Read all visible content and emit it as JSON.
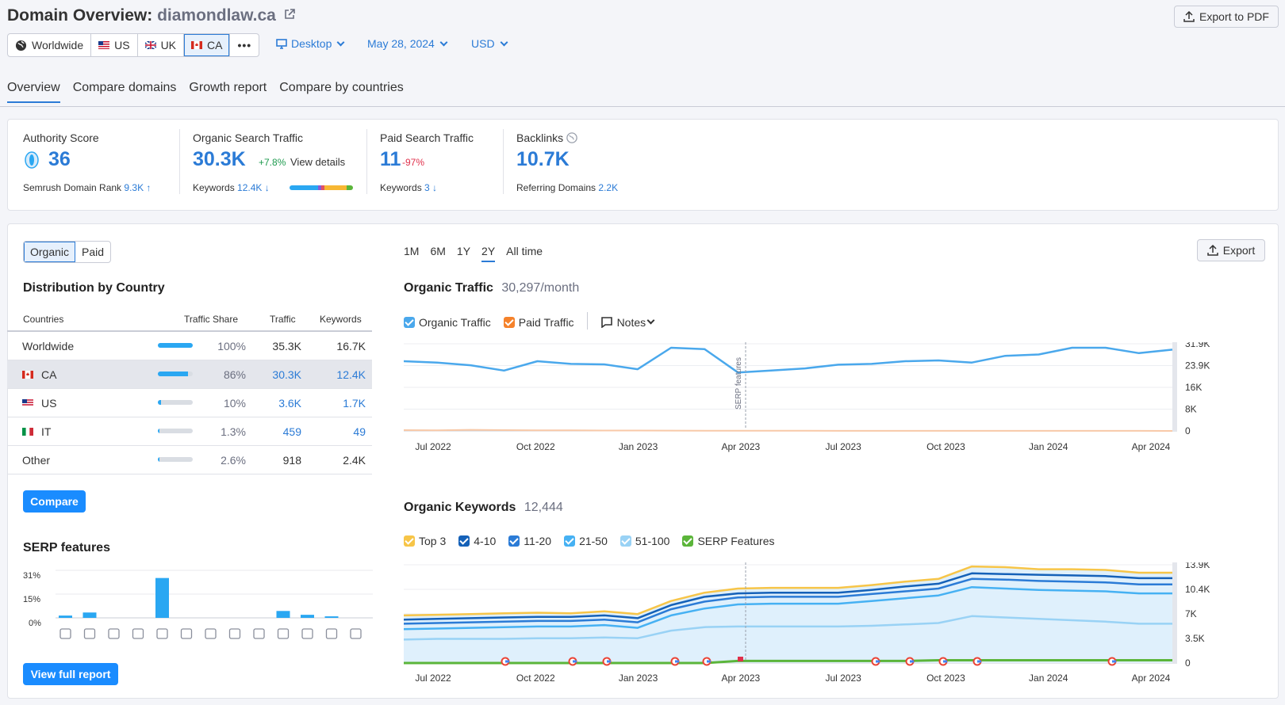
{
  "header": {
    "title": "Domain Overview:",
    "domain": "diamondlaw.ca",
    "export_pdf": "Export to PDF"
  },
  "regions": [
    {
      "label": "Worldwide"
    },
    {
      "label": "US"
    },
    {
      "label": "UK"
    },
    {
      "label": "CA"
    },
    {
      "label": "•••"
    }
  ],
  "filters": {
    "device": "Desktop",
    "date": "May 28, 2024",
    "currency": "USD"
  },
  "tabs": [
    "Overview",
    "Compare domains",
    "Growth report",
    "Compare by countries"
  ],
  "metrics": {
    "authority": {
      "label": "Authority Score",
      "value": "36",
      "sub_label": "Semrush Domain Rank",
      "sub_value": "9.3K ↑"
    },
    "organic": {
      "label": "Organic Search Traffic",
      "value": "30.3K",
      "change": "+7.8%",
      "link": "View details",
      "sub_label": "Keywords",
      "sub_value": "12.4K ↓"
    },
    "paid": {
      "label": "Paid Search Traffic",
      "value": "11",
      "change": "-97%",
      "sub_label": "Keywords",
      "sub_value": "3 ↓"
    },
    "backlinks": {
      "label": "Backlinks",
      "value": "10.7K",
      "sub_label": "Referring Domains",
      "sub_value": "2.2K"
    }
  },
  "left": {
    "seg": [
      "Organic",
      "Paid"
    ],
    "dist_title": "Distribution by Country",
    "columns": [
      "Countries",
      "Traffic Share",
      "Traffic",
      "Keywords"
    ],
    "rows": [
      {
        "country": "Worldwide",
        "share": "100%",
        "share_frac": 1.0,
        "traffic": "35.3K",
        "keywords": "16.7K"
      },
      {
        "country": "CA",
        "share": "86%",
        "share_frac": 0.86,
        "traffic": "30.3K",
        "keywords": "12.4K"
      },
      {
        "country": "US",
        "share": "10%",
        "share_frac": 0.1,
        "traffic": "3.6K",
        "keywords": "1.7K"
      },
      {
        "country": "IT",
        "share": "1.3%",
        "share_frac": 0.013,
        "traffic": "459",
        "keywords": "49"
      },
      {
        "country": "Other",
        "share": "2.6%",
        "share_frac": 0.026,
        "traffic": "918",
        "keywords": "2.4K"
      }
    ],
    "compare": "Compare",
    "serp_title": "SERP features",
    "serp_ticks": [
      "31%",
      "15%",
      "0%"
    ],
    "view_full": "View full report"
  },
  "right": {
    "ranges": [
      "1M",
      "6M",
      "1Y",
      "2Y",
      "All time"
    ],
    "export": "Export",
    "traffic_title": "Organic Traffic",
    "traffic_value": "30,297/month",
    "traffic_legend": [
      "Organic Traffic",
      "Paid Traffic",
      "Notes"
    ],
    "traffic_yticks": [
      "31.9K",
      "23.9K",
      "16K",
      "8K",
      "0"
    ],
    "serp_note": "SERP features",
    "xticks": [
      "Jul 2022",
      "Oct 2022",
      "Jan 2023",
      "Apr 2023",
      "Jul 2023",
      "Oct 2023",
      "Jan 2024",
      "Apr 2024"
    ],
    "kw_title": "Organic Keywords",
    "kw_value": "12,444",
    "kw_legend": [
      "Top 3",
      "4-10",
      "11-20",
      "21-50",
      "51-100",
      "SERP Features"
    ],
    "kw_yticks": [
      "13.9K",
      "10.4K",
      "7K",
      "3.5K",
      "0"
    ],
    "colors": {
      "organic": "#4aa8ec",
      "paid": "#f5822b",
      "top3": "#f7c548",
      "k410": "#1561b8",
      "k1120": "#2b7bd6",
      "k2150": "#46b1f3",
      "k51100": "#99d2f5",
      "serp": "#5bb53a"
    }
  },
  "chart_data": [
    {
      "type": "line",
      "title": "Organic Traffic",
      "x": [
        "Jun 2022",
        "Jul 2022",
        "Aug 2022",
        "Sep 2022",
        "Oct 2022",
        "Nov 2022",
        "Dec 2022",
        "Jan 2023",
        "Feb 2023",
        "Mar 2023",
        "Apr 2023",
        "May 2023",
        "Jun 2023",
        "Jul 2023",
        "Aug 2023",
        "Sep 2023",
        "Oct 2023",
        "Nov 2023",
        "Dec 2023",
        "Jan 2024",
        "Feb 2024",
        "Mar 2024",
        "Apr 2024",
        "May 2024"
      ],
      "series": [
        {
          "name": "Organic Traffic",
          "values": [
            26000,
            25500,
            24500,
            22500,
            26000,
            25000,
            24800,
            23000,
            31000,
            30500,
            21800,
            22500,
            23300,
            24700,
            25000,
            26000,
            26300,
            25500,
            28000,
            28500,
            31000,
            31000,
            29000,
            30300
          ]
        },
        {
          "name": "Paid Traffic",
          "values": [
            300,
            250,
            400,
            300,
            200,
            200,
            150,
            150,
            120,
            100,
            80,
            60,
            50,
            40,
            40,
            30,
            30,
            30,
            20,
            20,
            20,
            20,
            15,
            11
          ]
        }
      ],
      "ylim": [
        0,
        31900
      ]
    },
    {
      "type": "area",
      "title": "Organic Keywords",
      "x": [
        "Jun 2022",
        "Jul 2022",
        "Aug 2022",
        "Sep 2022",
        "Oct 2022",
        "Nov 2022",
        "Dec 2022",
        "Jan 2023",
        "Feb 2023",
        "Mar 2023",
        "Apr 2023",
        "May 2023",
        "Jun 2023",
        "Jul 2023",
        "Aug 2023",
        "Sep 2023",
        "Oct 2023",
        "Nov 2023",
        "Dec 2023",
        "Jan 2024",
        "Feb 2024",
        "Mar 2024",
        "Apr 2024",
        "May 2024"
      ],
      "series": [
        {
          "name": "Top 3",
          "values": [
            6900,
            7000,
            7100,
            7200,
            7300,
            7200,
            7500,
            7100,
            9000,
            10200,
            10800,
            10900,
            10900,
            10900,
            11300,
            11800,
            12200,
            14000,
            13900,
            13600,
            13600,
            13500,
            13100,
            13100
          ]
        },
        {
          "name": "4-10",
          "values": [
            6300,
            6400,
            6500,
            6600,
            6700,
            6700,
            6900,
            6500,
            8400,
            9600,
            10100,
            10200,
            10200,
            10200,
            10600,
            11100,
            11500,
            13000,
            12900,
            12800,
            12700,
            12600,
            12300,
            12300
          ]
        },
        {
          "name": "11-20",
          "values": [
            5700,
            5800,
            5900,
            6000,
            6100,
            6100,
            6300,
            5900,
            7800,
            8900,
            9500,
            9600,
            9600,
            9600,
            10000,
            10400,
            10800,
            12200,
            12100,
            11900,
            11800,
            11700,
            11400,
            11400
          ]
        },
        {
          "name": "21-50",
          "values": [
            4900,
            5000,
            5100,
            5200,
            5300,
            5300,
            5500,
            5100,
            6900,
            7900,
            8500,
            8600,
            8600,
            8600,
            9000,
            9400,
            9800,
            11000,
            10800,
            10600,
            10500,
            10400,
            10100,
            10100
          ]
        },
        {
          "name": "51-100",
          "values": [
            3400,
            3500,
            3500,
            3500,
            3600,
            3600,
            3700,
            3600,
            4700,
            5200,
            5300,
            5300,
            5300,
            5300,
            5400,
            5600,
            5800,
            6800,
            6600,
            6400,
            6200,
            6000,
            5700,
            5700
          ]
        },
        {
          "name": "SERP Features",
          "values": [
            0,
            0,
            0,
            0,
            0,
            0,
            0,
            0,
            0,
            0,
            300,
            300,
            300,
            300,
            300,
            300,
            400,
            400,
            400,
            400,
            400,
            400,
            400,
            400
          ]
        }
      ],
      "ylim": [
        0,
        13900
      ]
    },
    {
      "type": "bar",
      "title": "SERP features",
      "values": [
        1.5,
        3.5,
        0,
        0,
        26,
        0,
        0,
        0,
        0,
        4.5,
        2,
        1,
        0,
        0,
        0,
        0
      ],
      "ylim": [
        0,
        31
      ]
    }
  ]
}
